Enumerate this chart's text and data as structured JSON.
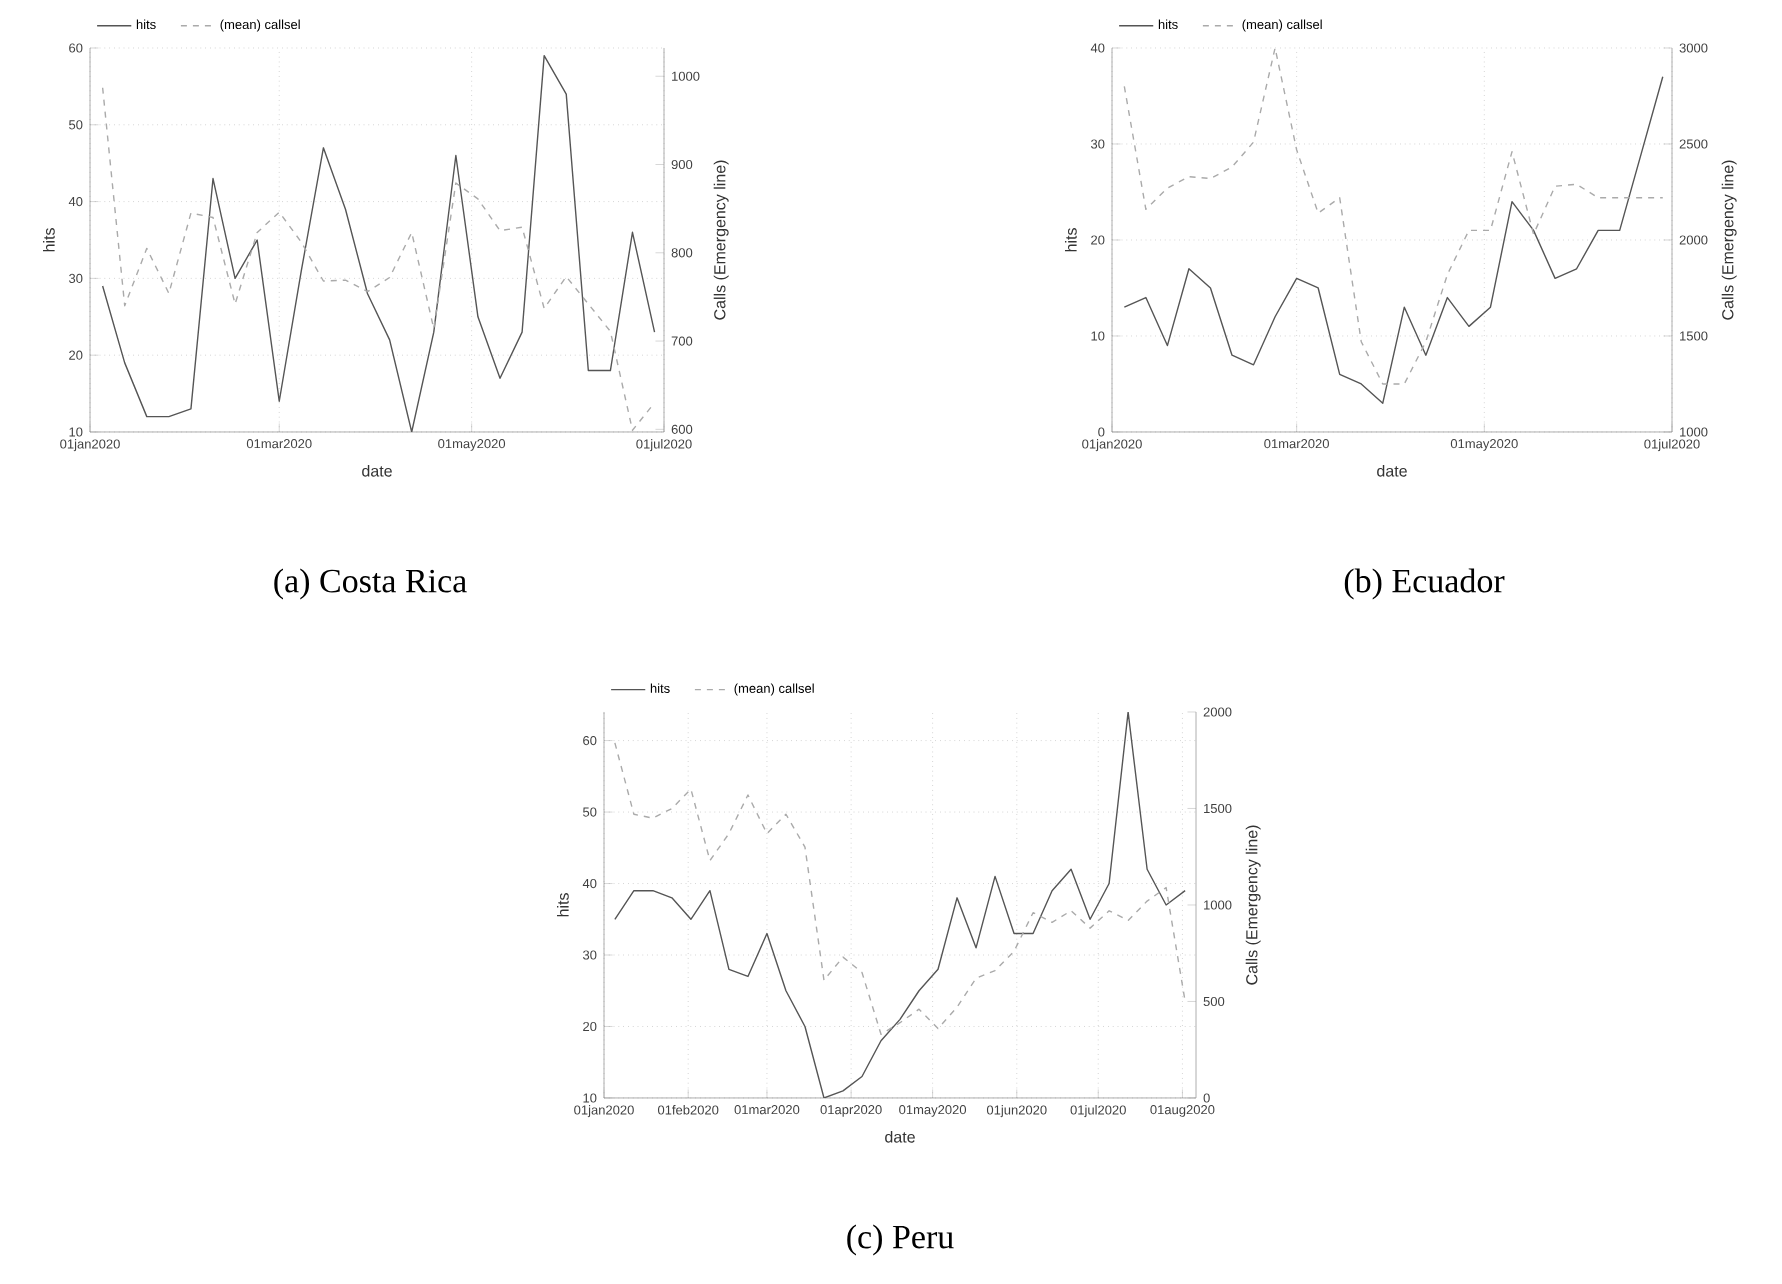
{
  "chart_data": [
    {
      "type": "line",
      "xlabel": "date",
      "ylabel": "hits",
      "y2label": "Calls (Emergency line)",
      "annotations": [
        "(a) Costa Rica"
      ],
      "x": [
        "2020-01-05",
        "2020-01-12",
        "2020-01-19",
        "2020-01-26",
        "2020-02-02",
        "2020-02-09",
        "2020-02-16",
        "2020-02-23",
        "2020-03-01",
        "2020-03-08",
        "2020-03-15",
        "2020-03-22",
        "2020-03-29",
        "2020-04-05",
        "2020-04-12",
        "2020-04-19",
        "2020-04-26",
        "2020-05-03",
        "2020-05-10",
        "2020-05-17",
        "2020-05-24",
        "2020-05-31",
        "2020-06-07",
        "2020-06-14",
        "2020-06-21",
        "2020-06-28"
      ],
      "series": [
        {
          "name": "hits",
          "color": "#555555",
          "line_style": "solid",
          "values": [
            29,
            19,
            12,
            12,
            13,
            43,
            30,
            35,
            14,
            31,
            47,
            39,
            28,
            22,
            10,
            23,
            46,
            25,
            17,
            23,
            59,
            54,
            18,
            18,
            36,
            23
          ]
        },
        {
          "name": "(mean) callsel",
          "color": "#aaaaaa",
          "line_style": "dashed",
          "axis": "y2",
          "values": [
            987,
            740,
            805,
            754,
            845,
            840,
            742,
            823,
            846,
            812,
            768,
            769,
            756,
            772,
            823,
            714,
            879,
            861,
            825,
            829,
            737,
            773,
            742,
            711,
            599,
            630
          ]
        }
      ],
      "xlim": [
        "2020-01-01",
        "2020-07-01"
      ],
      "xticks": [
        {
          "value": "2020-01-01",
          "label": "01jan2020"
        },
        {
          "value": "2020-03-01",
          "label": "01mar2020"
        },
        {
          "value": "2020-05-01",
          "label": "01may2020"
        },
        {
          "value": "2020-07-01",
          "label": "01jul2020"
        }
      ],
      "ylim": [
        10,
        60
      ],
      "yticks": [
        10,
        20,
        30,
        40,
        50,
        60
      ],
      "y2lim": [
        597,
        1032
      ],
      "y2ticks": [
        600,
        700,
        800,
        900,
        1000
      ],
      "grid": true,
      "legend": "top left"
    },
    {
      "type": "line",
      "xlabel": "date",
      "ylabel": "hits",
      "y2label": "Calls (Emergency line)",
      "annotations": [
        "(b) Ecuador"
      ],
      "x": [
        "2020-01-05",
        "2020-01-12",
        "2020-01-19",
        "2020-01-26",
        "2020-02-02",
        "2020-02-09",
        "2020-02-16",
        "2020-02-23",
        "2020-03-01",
        "2020-03-08",
        "2020-03-15",
        "2020-03-22",
        "2020-03-29",
        "2020-04-05",
        "2020-04-12",
        "2020-04-19",
        "2020-04-26",
        "2020-05-03",
        "2020-05-10",
        "2020-05-17",
        "2020-05-24",
        "2020-05-31",
        "2020-06-07",
        "2020-06-14",
        "2020-06-21",
        "2020-06-28"
      ],
      "series": [
        {
          "name": "hits",
          "color": "#555555",
          "line_style": "solid",
          "values": [
            13,
            14,
            9,
            17,
            15,
            8,
            7,
            12,
            16,
            15,
            6,
            5,
            3,
            13,
            8,
            14,
            11,
            13,
            24,
            21,
            16,
            17,
            21,
            21,
            29,
            37
          ]
        },
        {
          "name": "(mean) callsel",
          "color": "#aaaaaa",
          "line_style": "dashed",
          "axis": "y2",
          "values": [
            2800,
            2160,
            2270,
            2330,
            2320,
            2380,
            2510,
            3000,
            2470,
            2140,
            2220,
            1470,
            1250,
            1250,
            1470,
            1820,
            2050,
            2050,
            2460,
            2030,
            2280,
            2290,
            2220,
            2220,
            2220,
            2220
          ]
        }
      ],
      "xlim": [
        "2020-01-01",
        "2020-07-01"
      ],
      "xticks": [
        {
          "value": "2020-01-01",
          "label": "01jan2020"
        },
        {
          "value": "2020-03-01",
          "label": "01mar2020"
        },
        {
          "value": "2020-05-01",
          "label": "01may2020"
        },
        {
          "value": "2020-07-01",
          "label": "01jul2020"
        }
      ],
      "ylim": [
        0,
        40
      ],
      "yticks": [
        0,
        10,
        20,
        30,
        40
      ],
      "y2lim": [
        1000,
        3000
      ],
      "y2ticks": [
        1000,
        1500,
        2000,
        2500,
        3000
      ],
      "grid": true,
      "legend": "top left"
    },
    {
      "type": "line",
      "xlabel": "date",
      "ylabel": "hits",
      "y2label": "Calls (Emergency line)",
      "annotations": [
        "(c) Peru"
      ],
      "x": [
        "2020-01-05",
        "2020-01-12",
        "2020-01-19",
        "2020-01-26",
        "2020-02-02",
        "2020-02-09",
        "2020-02-16",
        "2020-02-23",
        "2020-03-01",
        "2020-03-08",
        "2020-03-15",
        "2020-03-22",
        "2020-03-29",
        "2020-04-05",
        "2020-04-12",
        "2020-04-19",
        "2020-04-26",
        "2020-05-03",
        "2020-05-10",
        "2020-05-17",
        "2020-05-24",
        "2020-05-31",
        "2020-06-07",
        "2020-06-14",
        "2020-06-21",
        "2020-06-28",
        "2020-07-05",
        "2020-07-12",
        "2020-07-19",
        "2020-07-26",
        "2020-08-02"
      ],
      "series": [
        {
          "name": "hits",
          "color": "#555555",
          "line_style": "solid",
          "values": [
            35,
            39,
            39,
            38,
            35,
            39,
            28,
            27,
            33,
            25,
            20,
            10,
            11,
            13,
            18,
            21,
            25,
            28,
            38,
            31,
            41,
            33,
            33,
            39,
            42,
            35,
            40,
            64,
            42,
            37,
            39
          ]
        },
        {
          "name": "(mean) callsel",
          "color": "#aaaaaa",
          "line_style": "dashed",
          "axis": "y2",
          "values": [
            1840,
            1470,
            1450,
            1500,
            1600,
            1230,
            1370,
            1570,
            1370,
            1470,
            1300,
            610,
            730,
            650,
            330,
            390,
            460,
            360,
            470,
            620,
            660,
            760,
            960,
            910,
            970,
            880,
            970,
            920,
            1020,
            1090,
            500
          ]
        }
      ],
      "xlim": [
        "2020-01-01",
        "2020-08-06"
      ],
      "xticks": [
        {
          "value": "2020-01-01",
          "label": "01jan2020"
        },
        {
          "value": "2020-02-01",
          "label": "01feb2020"
        },
        {
          "value": "2020-03-01",
          "label": "01mar2020"
        },
        {
          "value": "2020-04-01",
          "label": "01apr2020"
        },
        {
          "value": "2020-05-01",
          "label": "01may2020"
        },
        {
          "value": "2020-06-01",
          "label": "01jun2020"
        },
        {
          "value": "2020-07-01",
          "label": "01jul2020"
        },
        {
          "value": "2020-08-01",
          "label": "01aug2020"
        }
      ],
      "ylim": [
        10,
        64
      ],
      "yticks": [
        10,
        20,
        30,
        40,
        50,
        60
      ],
      "y2lim": [
        0,
        2000
      ],
      "y2ticks": [
        0,
        500,
        1000,
        1500,
        2000
      ],
      "grid": true,
      "legend": "top left"
    }
  ]
}
